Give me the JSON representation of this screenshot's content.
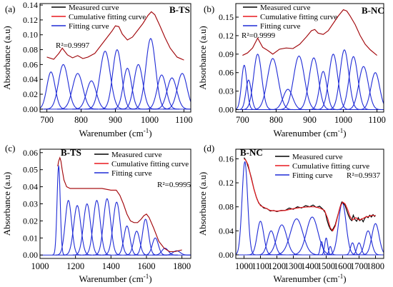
{
  "chart_data": [
    {
      "type": "line",
      "panel_label": "(a)",
      "sample_label": "B-TS",
      "r2_text": "R²=0.9997",
      "ylabel": "Absorbance  (a.u)",
      "xlabel": "Warenumber (cm",
      "xlabel_sup": "-1",
      "xlabel_end": ")",
      "xlim": [
        680,
        1120
      ],
      "ylim": [
        -0.004,
        0.142
      ],
      "x_ticks": [
        700,
        800,
        900,
        1000,
        1100
      ],
      "y_ticks": [
        0.0,
        0.02,
        0.04,
        0.06,
        0.08,
        0.1,
        0.12,
        0.14
      ],
      "y_tick_labels": [
        "0.00",
        "0.02",
        "0.04",
        "0.06",
        "0.08",
        "0.10",
        "0.12",
        "0.14"
      ],
      "legend": [
        "Measured curve",
        "Cumulative fitting curve",
        "Fitting curve"
      ],
      "colors": {
        "measured": "#000000",
        "cumulative": "#e8191f",
        "fitting": "#1f2bd6"
      },
      "baseline": 0.0,
      "cumulative": {
        "x": [
          700,
          720,
          735,
          745,
          760,
          775,
          790,
          805,
          820,
          840,
          860,
          875,
          890,
          900,
          910,
          920,
          935,
          950,
          965,
          980,
          995,
          1005,
          1015,
          1030,
          1045,
          1060,
          1080,
          1100
        ],
        "y": [
          0.07,
          0.067,
          0.075,
          0.082,
          0.073,
          0.069,
          0.072,
          0.068,
          0.07,
          0.075,
          0.087,
          0.096,
          0.105,
          0.112,
          0.111,
          0.101,
          0.093,
          0.097,
          0.106,
          0.115,
          0.126,
          0.131,
          0.127,
          0.112,
          0.096,
          0.082,
          0.07,
          0.066
        ]
      },
      "fitting": [
        {
          "center": 712,
          "amp": 0.05,
          "width": 12
        },
        {
          "center": 748,
          "amp": 0.06,
          "width": 14
        },
        {
          "center": 790,
          "amp": 0.048,
          "width": 15
        },
        {
          "center": 830,
          "amp": 0.038,
          "width": 14
        },
        {
          "center": 870,
          "amp": 0.078,
          "width": 15
        },
        {
          "center": 905,
          "amp": 0.08,
          "width": 13
        },
        {
          "center": 935,
          "amp": 0.055,
          "width": 12
        },
        {
          "center": 967,
          "amp": 0.06,
          "width": 13
        },
        {
          "center": 1003,
          "amp": 0.095,
          "width": 14
        },
        {
          "center": 1035,
          "amp": 0.046,
          "width": 13
        },
        {
          "center": 1065,
          "amp": 0.042,
          "width": 14
        },
        {
          "center": 1095,
          "amp": 0.048,
          "width": 14
        }
      ]
    },
    {
      "type": "line",
      "panel_label": "(b)",
      "sample_label": "B-NC",
      "r2_text": "R²=0.9999",
      "ylabel": "Absorbance  (a.u)",
      "xlabel": "Warenumber (cm",
      "xlabel_sup": "-1",
      "xlabel_end": ")",
      "xlim": [
        680,
        1120
      ],
      "ylim": [
        -0.004,
        0.172
      ],
      "x_ticks": [
        700,
        800,
        900,
        1000,
        1100
      ],
      "y_ticks": [
        0.0,
        0.03,
        0.06,
        0.09,
        0.12,
        0.15
      ],
      "y_tick_labels": [
        "0.00",
        "0.03",
        "0.06",
        "0.09",
        "0.12",
        "0.15"
      ],
      "legend": [
        "Measured curve",
        "Cumulative fitting curve",
        "Fitting curve"
      ],
      "colors": {
        "measured": "#000000",
        "cumulative": "#e8191f",
        "fitting": "#1f2bd6"
      },
      "baseline": 0.0,
      "cumulative": {
        "x": [
          700,
          715,
          730,
          745,
          760,
          775,
          790,
          810,
          830,
          850,
          870,
          890,
          905,
          915,
          925,
          940,
          955,
          970,
          985,
          1000,
          1010,
          1020,
          1035,
          1050,
          1065,
          1080,
          1100
        ],
        "y": [
          0.088,
          0.092,
          0.1,
          0.116,
          0.101,
          0.096,
          0.09,
          0.098,
          0.1,
          0.099,
          0.106,
          0.118,
          0.128,
          0.13,
          0.124,
          0.122,
          0.128,
          0.14,
          0.152,
          0.162,
          0.16,
          0.152,
          0.138,
          0.12,
          0.106,
          0.097,
          0.088
        ]
      },
      "fitting": [
        {
          "center": 705,
          "amp": 0.072,
          "width": 8
        },
        {
          "center": 718,
          "amp": 0.048,
          "width": 8
        },
        {
          "center": 745,
          "amp": 0.09,
          "width": 12
        },
        {
          "center": 790,
          "amp": 0.083,
          "width": 16
        },
        {
          "center": 835,
          "amp": 0.033,
          "width": 14
        },
        {
          "center": 868,
          "amp": 0.087,
          "width": 16
        },
        {
          "center": 912,
          "amp": 0.084,
          "width": 14
        },
        {
          "center": 940,
          "amp": 0.062,
          "width": 11
        },
        {
          "center": 970,
          "amp": 0.09,
          "width": 13
        },
        {
          "center": 1003,
          "amp": 0.097,
          "width": 13
        },
        {
          "center": 1030,
          "amp": 0.086,
          "width": 13
        },
        {
          "center": 1060,
          "amp": 0.07,
          "width": 14
        },
        {
          "center": 1095,
          "amp": 0.06,
          "width": 13
        }
      ]
    },
    {
      "type": "line",
      "panel_label": "(c)",
      "sample_label": "B-TS",
      "r2_text": "R²=0.9995",
      "ylabel": "Absorbance  (a.u)",
      "xlabel": "Warenumber (cm",
      "xlabel_sup": "-1",
      "xlabel_end": ")",
      "xlim": [
        1000,
        1850
      ],
      "ylim": [
        -0.002,
        0.062
      ],
      "x_ticks": [
        1000,
        1200,
        1400,
        1600,
        1800
      ],
      "y_ticks": [
        0.0,
        0.01,
        0.02,
        0.03,
        0.04,
        0.05,
        0.06
      ],
      "y_tick_labels": [
        "0.00",
        "0.01",
        "0.02",
        "0.03",
        "0.04",
        "0.05",
        "0.06"
      ],
      "legend": [
        "Measured curve",
        "Cumulative fitting curve",
        "Fitting curve"
      ],
      "colors": {
        "measured": "#000000",
        "cumulative": "#e8191f",
        "fitting": "#1f2bd6"
      },
      "baseline": 0.0,
      "cumulative": {
        "x": [
          1100,
          1105,
          1112,
          1118,
          1125,
          1135,
          1150,
          1170,
          1200,
          1250,
          1300,
          1350,
          1400,
          1430,
          1450,
          1470,
          1490,
          1510,
          1530,
          1550,
          1570,
          1585,
          1600,
          1615,
          1640,
          1670,
          1700,
          1730,
          1760,
          1800
        ],
        "y": [
          0.052,
          0.055,
          0.057,
          0.055,
          0.05,
          0.044,
          0.04,
          0.039,
          0.039,
          0.039,
          0.039,
          0.039,
          0.038,
          0.038,
          0.035,
          0.03,
          0.024,
          0.02,
          0.019,
          0.019,
          0.021,
          0.023,
          0.024,
          0.022,
          0.016,
          0.008,
          0.004,
          0.002,
          0.002,
          0.003
        ]
      },
      "fitting": [
        {
          "center": 1105,
          "amp": 0.052,
          "width": 9
        },
        {
          "center": 1160,
          "amp": 0.032,
          "width": 18
        },
        {
          "center": 1210,
          "amp": 0.029,
          "width": 20
        },
        {
          "center": 1265,
          "amp": 0.03,
          "width": 20
        },
        {
          "center": 1320,
          "amp": 0.032,
          "width": 20
        },
        {
          "center": 1378,
          "amp": 0.033,
          "width": 20
        },
        {
          "center": 1432,
          "amp": 0.031,
          "width": 20
        },
        {
          "center": 1490,
          "amp": 0.017,
          "width": 17
        },
        {
          "center": 1545,
          "amp": 0.014,
          "width": 17
        },
        {
          "center": 1595,
          "amp": 0.021,
          "width": 17
        },
        {
          "center": 1650,
          "amp": 0.01,
          "width": 17
        },
        {
          "center": 1705,
          "amp": 0.004,
          "width": 18
        },
        {
          "center": 1770,
          "amp": 0.0025,
          "width": 20
        }
      ]
    },
    {
      "type": "line",
      "panel_label": "(d)",
      "sample_label": "B-NC",
      "r2_text": "R²=0.9937",
      "ylabel": "Absorbance  (a.u)",
      "xlabel": "Warenumber (cm",
      "xlabel_sup": "-1",
      "xlabel_end": ")",
      "xlim": [
        950,
        1850
      ],
      "ylim": [
        -0.006,
        0.176
      ],
      "x_ticks": [
        1000,
        1100,
        1200,
        1300,
        1400,
        1500,
        1600,
        1700,
        1800
      ],
      "y_ticks": [
        0.0,
        0.04,
        0.08,
        0.12,
        0.16
      ],
      "y_tick_labels": [
        "0.00",
        "0.04",
        "0.08",
        "0.12",
        "0.16"
      ],
      "legend": [
        "Measured curve",
        "Cumulative fitting curve",
        "Fitting curve"
      ],
      "colors": {
        "measured": "#000000",
        "cumulative": "#e8191f",
        "fitting": "#1f2bd6"
      },
      "baseline": 0.0,
      "cumulative": {
        "x": [
          1000,
          1010,
          1025,
          1040,
          1060,
          1080,
          1100,
          1130,
          1160,
          1200,
          1250,
          1300,
          1350,
          1400,
          1430,
          1460,
          1490,
          1510,
          1525,
          1540,
          1555,
          1570,
          1585,
          1600,
          1615,
          1630,
          1645,
          1660,
          1680,
          1700,
          1720,
          1740,
          1760,
          1780,
          1800
        ],
        "y": [
          0.16,
          0.158,
          0.15,
          0.132,
          0.11,
          0.092,
          0.082,
          0.078,
          0.074,
          0.073,
          0.074,
          0.077,
          0.079,
          0.08,
          0.08,
          0.078,
          0.074,
          0.06,
          0.045,
          0.04,
          0.048,
          0.064,
          0.08,
          0.088,
          0.085,
          0.076,
          0.064,
          0.058,
          0.062,
          0.058,
          0.06,
          0.063,
          0.064,
          0.066,
          0.065
        ]
      },
      "measured": {
        "x": [
          1000,
          1005,
          1010,
          1018,
          1025,
          1035,
          1045,
          1060,
          1075,
          1090,
          1105,
          1120,
          1140,
          1160,
          1180,
          1200,
          1225,
          1250,
          1275,
          1300,
          1325,
          1350,
          1375,
          1400,
          1420,
          1440,
          1460,
          1480,
          1495,
          1505,
          1515,
          1525,
          1535,
          1545,
          1555,
          1565,
          1575,
          1585,
          1595,
          1605,
          1615,
          1625,
          1635,
          1645,
          1655,
          1665,
          1675,
          1685,
          1695,
          1705,
          1715,
          1725,
          1735,
          1745,
          1755,
          1765,
          1775,
          1785,
          1795,
          1800
        ],
        "y": [
          0.162,
          0.16,
          0.158,
          0.153,
          0.147,
          0.138,
          0.128,
          0.11,
          0.096,
          0.086,
          0.082,
          0.078,
          0.077,
          0.073,
          0.074,
          0.072,
          0.074,
          0.074,
          0.078,
          0.076,
          0.08,
          0.078,
          0.082,
          0.08,
          0.083,
          0.079,
          0.081,
          0.076,
          0.07,
          0.058,
          0.049,
          0.043,
          0.04,
          0.045,
          0.05,
          0.06,
          0.07,
          0.08,
          0.088,
          0.086,
          0.082,
          0.074,
          0.066,
          0.06,
          0.057,
          0.066,
          0.059,
          0.056,
          0.062,
          0.057,
          0.06,
          0.055,
          0.061,
          0.064,
          0.062,
          0.066,
          0.063,
          0.067,
          0.064,
          0.066
        ]
      },
      "fitting": [
        {
          "center": 1005,
          "amp": 0.155,
          "width": 17
        },
        {
          "center": 1100,
          "amp": 0.056,
          "width": 20
        },
        {
          "center": 1165,
          "amp": 0.04,
          "width": 22
        },
        {
          "center": 1230,
          "amp": 0.05,
          "width": 30
        },
        {
          "center": 1320,
          "amp": 0.06,
          "width": 38
        },
        {
          "center": 1415,
          "amp": 0.063,
          "width": 35
        },
        {
          "center": 1472,
          "amp": 0.022,
          "width": 8
        },
        {
          "center": 1500,
          "amp": 0.028,
          "width": 9
        },
        {
          "center": 1525,
          "amp": 0.014,
          "width": 8
        },
        {
          "center": 1598,
          "amp": 0.087,
          "width": 23
        },
        {
          "center": 1660,
          "amp": 0.02,
          "width": 12
        },
        {
          "center": 1700,
          "amp": 0.02,
          "width": 13
        },
        {
          "center": 1755,
          "amp": 0.04,
          "width": 20
        },
        {
          "center": 1800,
          "amp": 0.052,
          "width": 22
        }
      ]
    }
  ]
}
